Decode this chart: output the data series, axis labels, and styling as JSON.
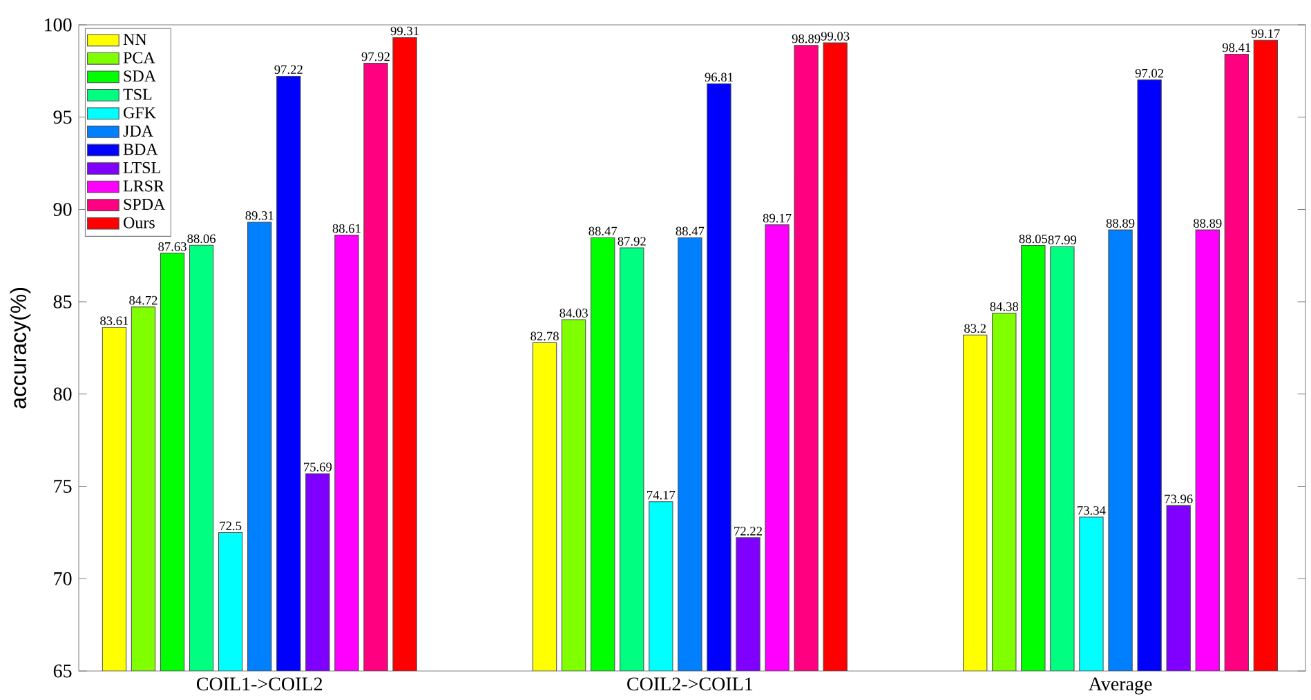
{
  "chart_data": {
    "type": "bar",
    "ylabel": "accuracy(%)",
    "categories": [
      "COIL1->COIL2",
      "COIL2->COIL1",
      "Average"
    ],
    "series": [
      {
        "name": "NN",
        "color": "#ffff00",
        "values": [
          83.61,
          82.78,
          83.2
        ]
      },
      {
        "name": "PCA",
        "color": "#80ff00",
        "values": [
          84.72,
          84.03,
          84.38
        ]
      },
      {
        "name": "SDA",
        "color": "#00ff00",
        "values": [
          87.63,
          88.47,
          88.05
        ]
      },
      {
        "name": "TSL",
        "color": "#00ff80",
        "values": [
          88.06,
          87.92,
          87.99
        ]
      },
      {
        "name": "GFK",
        "color": "#00ffff",
        "values": [
          72.5,
          74.17,
          73.34
        ]
      },
      {
        "name": "JDA",
        "color": "#0080ff",
        "values": [
          89.31,
          88.47,
          88.89
        ]
      },
      {
        "name": "BDA",
        "color": "#0000ff",
        "values": [
          97.22,
          96.81,
          97.02
        ]
      },
      {
        "name": "LTSL",
        "color": "#8000ff",
        "values": [
          75.69,
          72.22,
          73.96
        ]
      },
      {
        "name": "LRSR",
        "color": "#ff00ff",
        "values": [
          88.61,
          89.17,
          88.89
        ]
      },
      {
        "name": "SPDA",
        "color": "#ff0080",
        "values": [
          97.92,
          98.89,
          98.41
        ]
      },
      {
        "name": "Ours",
        "color": "#ff0000",
        "values": [
          99.31,
          99.03,
          99.17
        ]
      }
    ],
    "ylim": [
      65,
      100
    ],
    "yticks": [
      65,
      70,
      75,
      80,
      85,
      90,
      95,
      100
    ],
    "data_labels": true,
    "legend": "top left"
  }
}
